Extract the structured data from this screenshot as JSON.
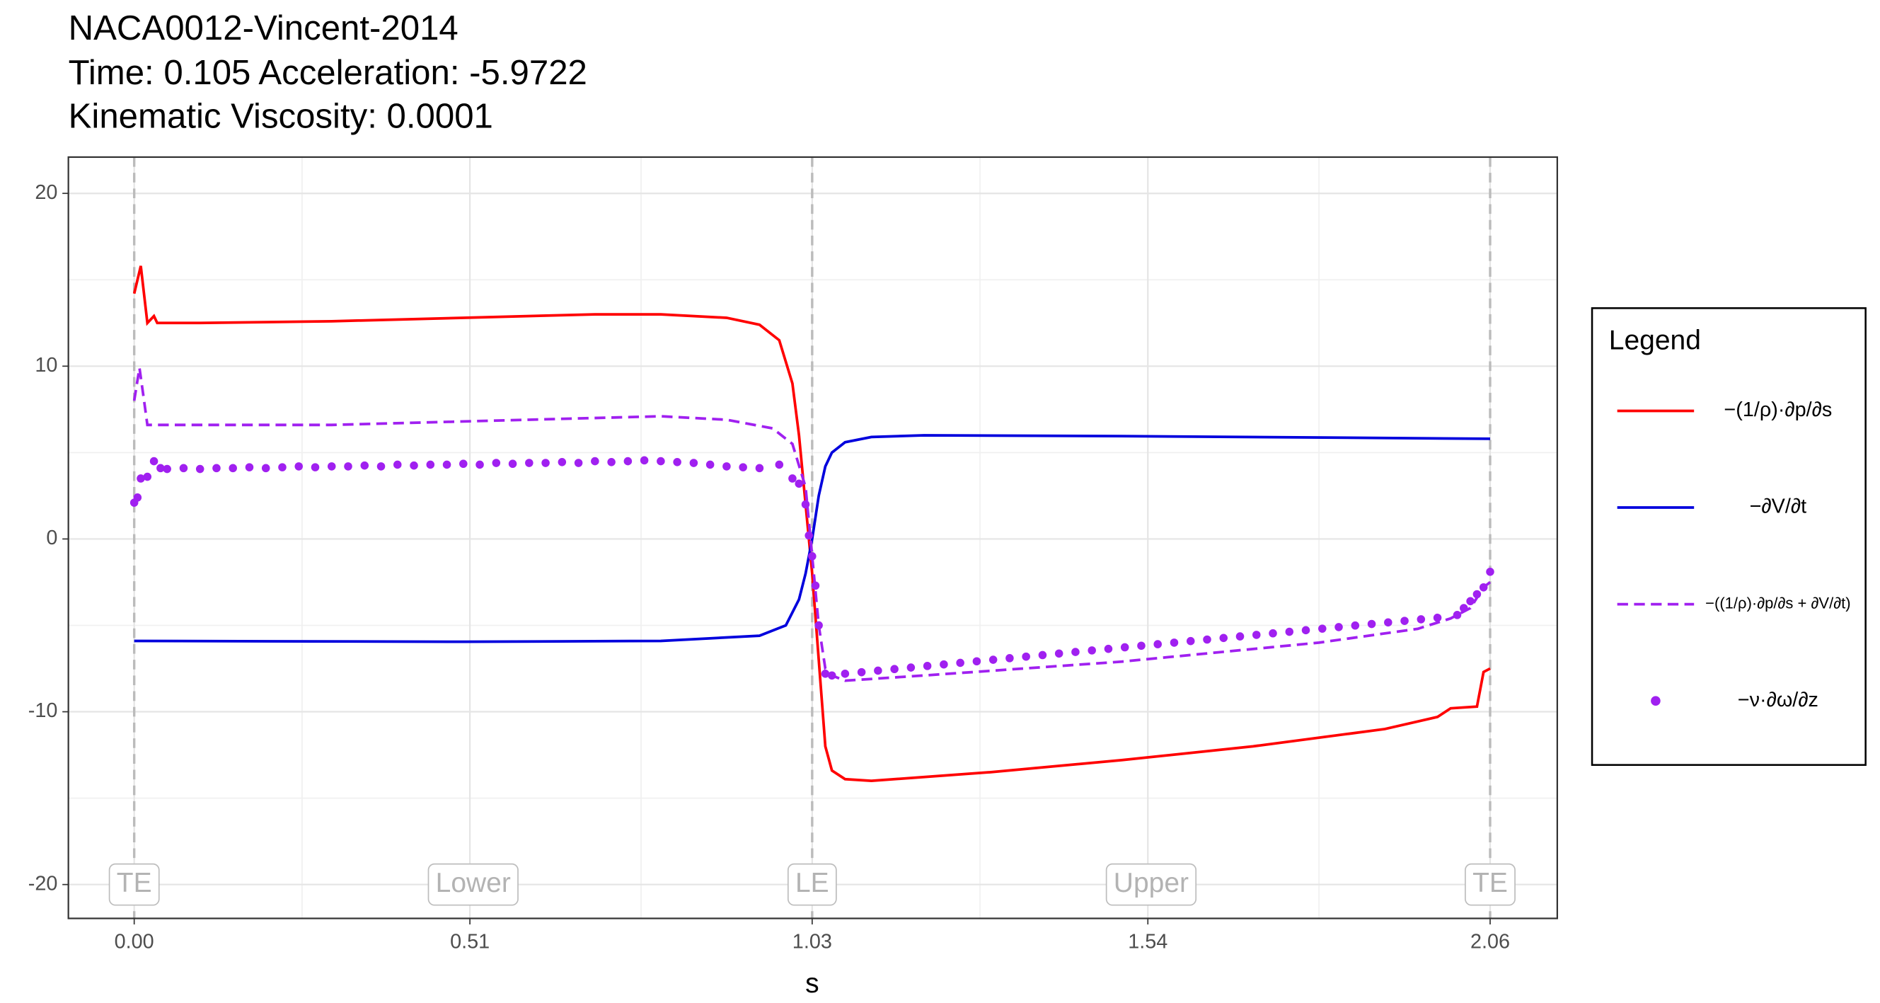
{
  "chart_data": {
    "type": "line",
    "title": [
      "NACA0012-Vincent-2014",
      "Time: 0.105   Acceleration: -5.9722",
      "Kinematic Viscosity: 0.0001"
    ],
    "xlabel": "s",
    "xlim": [
      -0.1,
      2.162
    ],
    "ylim": [
      -21.96,
      22.1
    ],
    "xticks": [
      {
        "value": 0,
        "label": "0.00"
      },
      0.51,
      1.03,
      1.54,
      2.06
    ],
    "yticks": [
      -20,
      -10,
      0,
      10,
      20
    ],
    "grid": true,
    "legend_title": "Legend",
    "legend_position": "right",
    "vlines": [
      0,
      1.03,
      2.06
    ],
    "annotations": [
      {
        "label": "TE",
        "x": 0,
        "y": -20
      },
      {
        "label": "Lower",
        "x": 0.515,
        "y": -20
      },
      {
        "label": "LE",
        "x": 1.03,
        "y": -20
      },
      {
        "label": "Upper",
        "x": 1.545,
        "y": -20
      },
      {
        "label": "TE",
        "x": 2.06,
        "y": -20
      }
    ],
    "series": [
      {
        "name": "−(1/ρ)·∂p/∂s",
        "color": "#ff0000",
        "style": "solid",
        "x": [
          0,
          0.01,
          0.02,
          0.03,
          0.035,
          0.1,
          0.3,
          0.5,
          0.7,
          0.8,
          0.9,
          0.95,
          0.98,
          1.0,
          1.01,
          1.02,
          1.03,
          1.04,
          1.05,
          1.06,
          1.08,
          1.12,
          1.3,
          1.5,
          1.7,
          1.9,
          1.98,
          2.0,
          2.04,
          2.05,
          2.06
        ],
        "values": [
          14.2,
          15.8,
          12.5,
          12.9,
          12.5,
          12.5,
          12.6,
          12.8,
          13.0,
          13.0,
          12.8,
          12.4,
          11.5,
          9,
          6,
          2,
          -2,
          -7,
          -12,
          -13.4,
          -13.9,
          -14.0,
          -13.5,
          -12.8,
          -12.0,
          -11.0,
          -10.3,
          -9.8,
          -9.7,
          -7.7,
          -7.5
        ]
      },
      {
        "name": "−∂V/∂t",
        "color": "#0000dd",
        "style": "solid",
        "x": [
          0,
          0.5,
          0.8,
          0.95,
          0.99,
          1.01,
          1.02,
          1.03,
          1.04,
          1.05,
          1.06,
          1.08,
          1.12,
          1.2,
          1.5,
          2.06
        ],
        "values": [
          -5.9,
          -5.95,
          -5.9,
          -5.6,
          -5.0,
          -3.5,
          -2,
          0.0,
          2.5,
          4.2,
          5.0,
          5.6,
          5.9,
          6.0,
          5.95,
          5.8
        ]
      },
      {
        "name": "−((1/ρ)·∂p/∂s + ∂V/∂t)",
        "color": "#a020f0",
        "style": "dashed",
        "x": [
          0,
          0.008,
          0.015,
          0.02,
          0.05,
          0.3,
          0.6,
          0.8,
          0.9,
          0.97,
          1.0,
          1.02,
          1.03,
          1.04,
          1.05,
          1.06,
          1.08,
          1.2,
          1.5,
          1.8,
          1.95,
          2.0,
          2.03,
          2.05,
          2.06
        ],
        "values": [
          8,
          9.9,
          8,
          6.6,
          6.6,
          6.6,
          6.9,
          7.1,
          6.9,
          6.4,
          5.5,
          3,
          -1,
          -5,
          -7.5,
          -7.9,
          -8.2,
          -7.9,
          -7.1,
          -6.0,
          -5.2,
          -4.6,
          -4.0,
          -2.8,
          -2.5
        ]
      },
      {
        "name": "−ν·∂ω/∂z",
        "color": "#a020f0",
        "style": "points",
        "x": [
          0,
          0.005,
          0.01,
          0.02,
          0.03,
          0.04,
          0.05,
          0.075,
          0.1,
          0.125,
          0.15,
          0.175,
          0.2,
          0.225,
          0.25,
          0.275,
          0.3,
          0.325,
          0.35,
          0.375,
          0.4,
          0.425,
          0.45,
          0.475,
          0.5,
          0.525,
          0.55,
          0.575,
          0.6,
          0.625,
          0.65,
          0.675,
          0.7,
          0.725,
          0.75,
          0.775,
          0.8,
          0.825,
          0.85,
          0.875,
          0.9,
          0.925,
          0.95,
          0.98,
          1.0,
          1.01,
          1.02,
          1.025,
          1.03,
          1.035,
          1.04,
          1.05,
          1.06,
          1.08,
          1.105,
          1.13,
          1.155,
          1.18,
          1.205,
          1.23,
          1.255,
          1.28,
          1.305,
          1.33,
          1.355,
          1.38,
          1.405,
          1.43,
          1.455,
          1.48,
          1.505,
          1.53,
          1.555,
          1.58,
          1.605,
          1.63,
          1.655,
          1.68,
          1.705,
          1.73,
          1.755,
          1.78,
          1.805,
          1.83,
          1.855,
          1.88,
          1.905,
          1.93,
          1.955,
          1.98,
          2.01,
          2.02,
          2.03,
          2.04,
          2.05,
          2.06
        ],
        "values": [
          2.1,
          2.4,
          3.5,
          3.6,
          4.5,
          4.1,
          4.05,
          4.1,
          4.05,
          4.1,
          4.1,
          4.15,
          4.1,
          4.15,
          4.2,
          4.15,
          4.2,
          4.2,
          4.25,
          4.2,
          4.3,
          4.25,
          4.3,
          4.3,
          4.35,
          4.3,
          4.4,
          4.35,
          4.4,
          4.4,
          4.45,
          4.4,
          4.5,
          4.45,
          4.5,
          4.55,
          4.5,
          4.45,
          4.4,
          4.3,
          4.2,
          4.15,
          4.1,
          4.3,
          3.5,
          3.2,
          2.0,
          0.2,
          -1.0,
          -2.7,
          -5.0,
          -7.8,
          -7.9,
          -7.8,
          -7.71,
          -7.62,
          -7.53,
          -7.44,
          -7.35,
          -7.26,
          -7.17,
          -7.08,
          -6.99,
          -6.9,
          -6.81,
          -6.72,
          -6.63,
          -6.54,
          -6.45,
          -6.36,
          -6.27,
          -6.18,
          -6.09,
          -6.0,
          -5.91,
          -5.82,
          -5.73,
          -5.64,
          -5.55,
          -5.46,
          -5.37,
          -5.28,
          -5.19,
          -5.1,
          -5.01,
          -4.92,
          -4.83,
          -4.74,
          -4.65,
          -4.56,
          -4.4,
          -4.0,
          -3.6,
          -3.2,
          -2.8,
          -1.9
        ]
      }
    ]
  }
}
